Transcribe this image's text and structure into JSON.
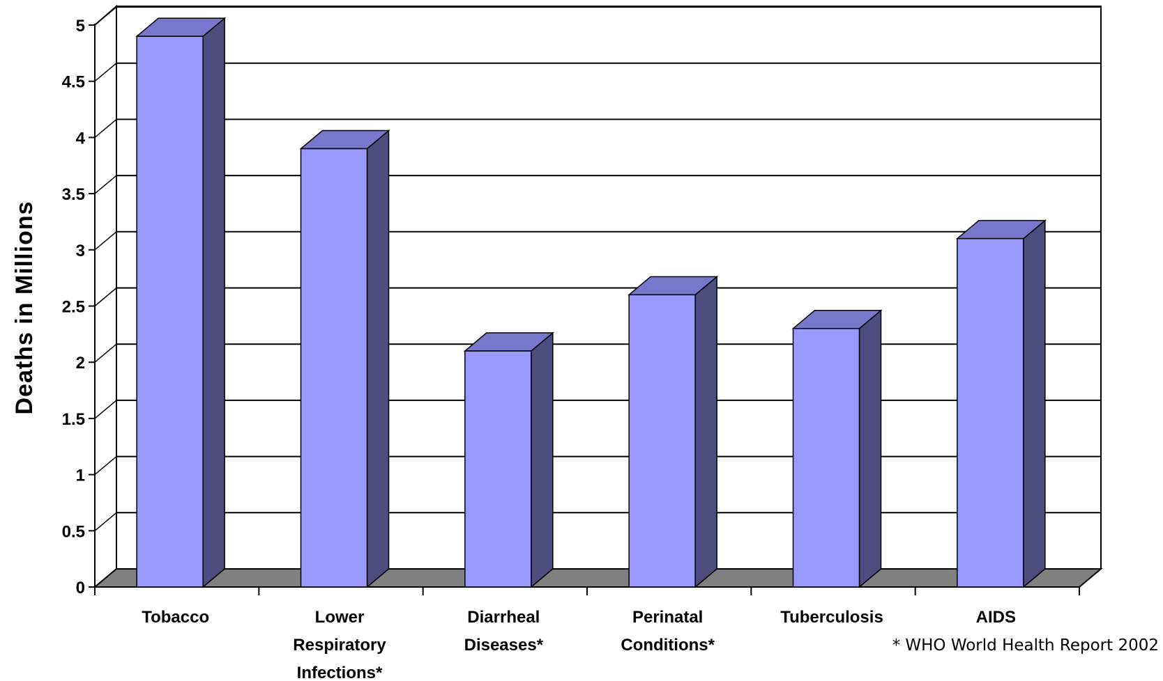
{
  "chart_data": {
    "type": "bar",
    "title": "",
    "xlabel": "",
    "ylabel": "Deaths in Millions",
    "ylim": [
      0,
      5
    ],
    "yticks": [
      "0",
      "0.5",
      "1",
      "1.5",
      "2",
      "2.5",
      "3",
      "3.5",
      "4",
      "4.5",
      "5"
    ],
    "categories": [
      [
        "Tobacco"
      ],
      [
        "Lower",
        "Respiratory",
        "Infections*"
      ],
      [
        "Diarrheal",
        "Diseases*"
      ],
      [
        "Perinatal",
        "Conditions*"
      ],
      [
        "Tuberculosis"
      ],
      [
        "AIDS"
      ]
    ],
    "values": [
      4.9,
      3.9,
      2.1,
      2.6,
      2.3,
      3.1
    ],
    "grid": true,
    "style": "3d",
    "colors": {
      "bar_front": "#9999FF",
      "bar_top": "#7777CC",
      "bar_side": "#4D4D80",
      "floor": "#808080"
    },
    "footnote": "* WHO World Health Report 2002"
  }
}
